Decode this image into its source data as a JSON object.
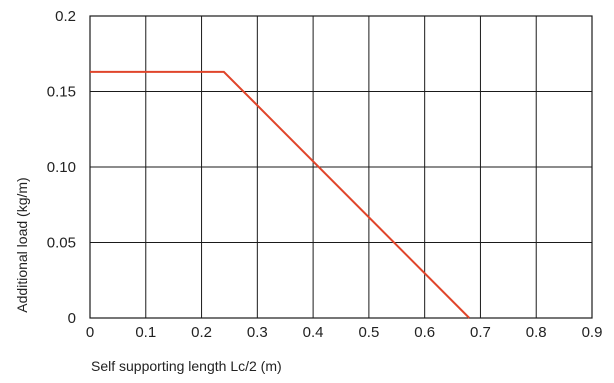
{
  "chart_data": {
    "type": "line",
    "title": "",
    "xlabel": "Self supporting length Lc/2 (m)",
    "ylabel": "Additional load (kg/m)",
    "xlim": [
      0,
      0.9
    ],
    "ylim": [
      0,
      0.2
    ],
    "x_ticks": [
      0,
      0.1,
      0.2,
      0.3,
      0.4,
      0.5,
      0.6,
      0.7,
      0.8,
      0.9
    ],
    "x_tick_labels": [
      "0",
      "0.1",
      "0.2",
      "0.3",
      "0.4",
      "0.5",
      "0.6",
      "0.7",
      "0.8",
      "0.9"
    ],
    "y_ticks": [
      0,
      0.05,
      0.1,
      0.15,
      0.2
    ],
    "y_tick_labels": [
      "0",
      "0.05",
      "0.10",
      "0.15",
      "0.2"
    ],
    "grid": true,
    "legend": "none",
    "series": [
      {
        "x": [
          0,
          0.24,
          0.68
        ],
        "y": [
          0.163,
          0.163,
          0
        ],
        "color": "#e0452b"
      }
    ]
  }
}
